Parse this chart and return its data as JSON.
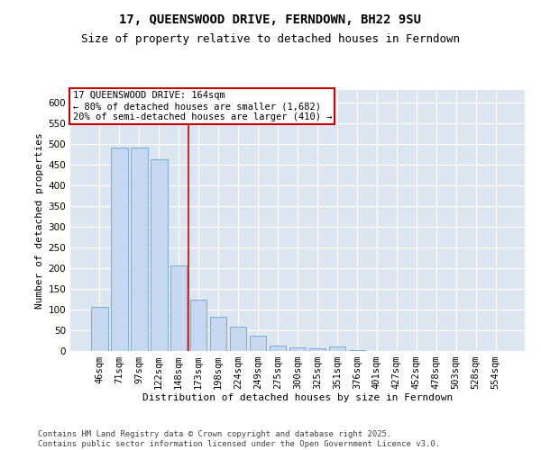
{
  "title_line1": "17, QUEENSWOOD DRIVE, FERNDOWN, BH22 9SU",
  "title_line2": "Size of property relative to detached houses in Ferndown",
  "xlabel": "Distribution of detached houses by size in Ferndown",
  "ylabel": "Number of detached properties",
  "categories": [
    "46sqm",
    "71sqm",
    "97sqm",
    "122sqm",
    "148sqm",
    "173sqm",
    "198sqm",
    "224sqm",
    "249sqm",
    "275sqm",
    "300sqm",
    "325sqm",
    "351sqm",
    "376sqm",
    "401sqm",
    "427sqm",
    "452sqm",
    "478sqm",
    "503sqm",
    "528sqm",
    "554sqm"
  ],
  "values": [
    107,
    492,
    492,
    462,
    207,
    124,
    82,
    59,
    37,
    13,
    9,
    6,
    10,
    2,
    1,
    1,
    0,
    0,
    0,
    0,
    0
  ],
  "bar_color": "#c5d8ef",
  "bar_edge_color": "#7aadd4",
  "background_color": "#dce6f0",
  "grid_color": "#ffffff",
  "annotation_box_text": "17 QUEENSWOOD DRIVE: 164sqm\n← 80% of detached houses are smaller (1,682)\n20% of semi-detached houses are larger (410) →",
  "annotation_box_color": "#ffffff",
  "annotation_box_edge_color": "#cc0000",
  "vline_color": "#cc0000",
  "vline_x_index": 4.5,
  "ylim": [
    0,
    630
  ],
  "yticks": [
    0,
    50,
    100,
    150,
    200,
    250,
    300,
    350,
    400,
    450,
    500,
    550,
    600
  ],
  "footer": "Contains HM Land Registry data © Crown copyright and database right 2025.\nContains public sector information licensed under the Open Government Licence v3.0.",
  "title_fontsize": 10,
  "subtitle_fontsize": 9,
  "axis_label_fontsize": 8,
  "tick_fontsize": 7.5,
  "annotation_fontsize": 7.5,
  "footer_fontsize": 6.5
}
